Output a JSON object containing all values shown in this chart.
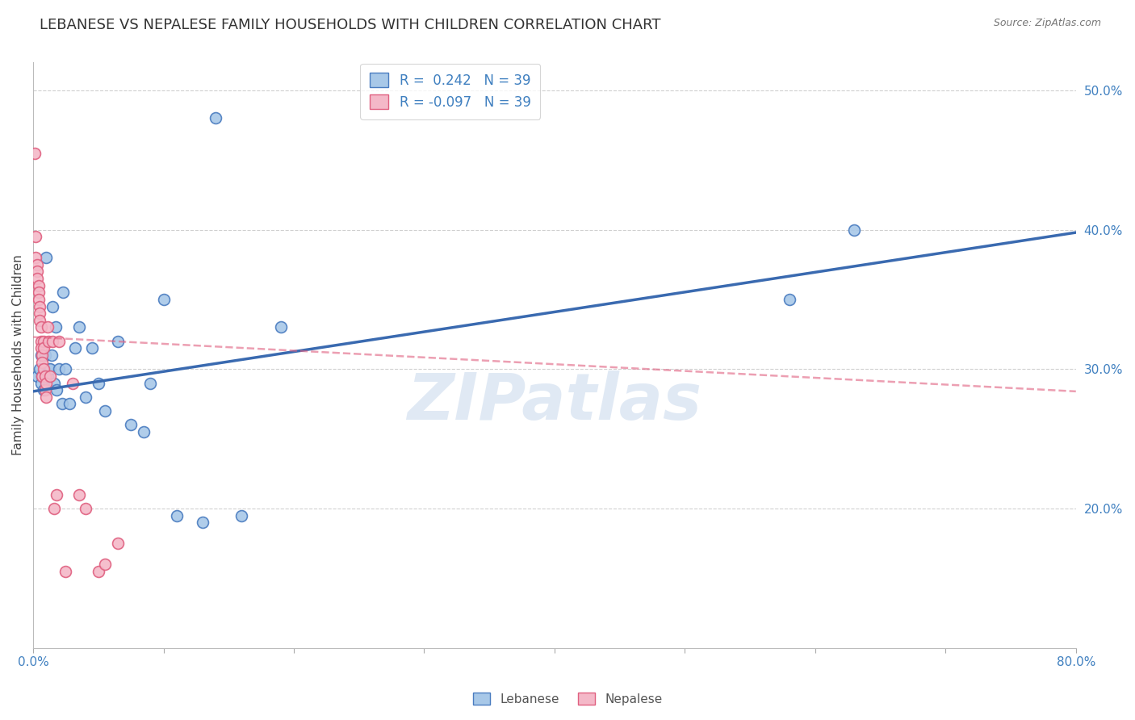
{
  "title": "LEBANESE VS NEPALESE FAMILY HOUSEHOLDS WITH CHILDREN CORRELATION CHART",
  "source": "Source: ZipAtlas.com",
  "ylabel_label": "Family Households with Children",
  "watermark": "ZIPatlas",
  "x_min": 0.0,
  "x_max": 0.8,
  "y_min": 0.1,
  "y_max": 0.52,
  "y_ticks": [
    0.2,
    0.3,
    0.4,
    0.5
  ],
  "y_tick_labels": [
    "20.0%",
    "30.0%",
    "40.0%",
    "50.0%"
  ],
  "x_ticks": [
    0.0,
    0.1,
    0.2,
    0.3,
    0.4,
    0.5,
    0.6,
    0.7,
    0.8
  ],
  "lebanese_R": 0.242,
  "lebanese_N": 39,
  "nepalese_R": -0.097,
  "nepalese_N": 39,
  "lebanese_color": "#a8c8e8",
  "lebanese_edge_color": "#4a7cc0",
  "lebanese_line_color": "#3a6ab0",
  "nepalese_color": "#f4b8c8",
  "nepalese_edge_color": "#e06080",
  "nepalese_line_color": "#e06080",
  "background_color": "#ffffff",
  "grid_color": "#d0d0d0",
  "title_fontsize": 13,
  "axis_label_fontsize": 11,
  "tick_fontsize": 11,
  "marker_size": 100,
  "leb_line_x0": 0.0,
  "leb_line_y0": 0.284,
  "leb_line_x1": 0.8,
  "leb_line_y1": 0.398,
  "nep_line_x0": 0.0,
  "nep_line_y0": 0.323,
  "nep_line_x1": 0.8,
  "nep_line_y1": 0.284,
  "lebanese_x": [
    0.003,
    0.005,
    0.006,
    0.006,
    0.007,
    0.008,
    0.009,
    0.01,
    0.011,
    0.012,
    0.013,
    0.014,
    0.015,
    0.016,
    0.017,
    0.018,
    0.02,
    0.022,
    0.023,
    0.025,
    0.028,
    0.032,
    0.035,
    0.04,
    0.045,
    0.05,
    0.055,
    0.065,
    0.075,
    0.085,
    0.09,
    0.1,
    0.11,
    0.13,
    0.14,
    0.16,
    0.19,
    0.58,
    0.63
  ],
  "lebanese_y": [
    0.295,
    0.3,
    0.29,
    0.31,
    0.295,
    0.285,
    0.31,
    0.38,
    0.295,
    0.3,
    0.3,
    0.31,
    0.345,
    0.29,
    0.33,
    0.285,
    0.3,
    0.275,
    0.355,
    0.3,
    0.275,
    0.315,
    0.33,
    0.28,
    0.315,
    0.29,
    0.27,
    0.32,
    0.26,
    0.255,
    0.29,
    0.35,
    0.195,
    0.19,
    0.48,
    0.195,
    0.33,
    0.35,
    0.4
  ],
  "nepalese_x": [
    0.001,
    0.002,
    0.002,
    0.003,
    0.003,
    0.003,
    0.004,
    0.004,
    0.004,
    0.005,
    0.005,
    0.005,
    0.006,
    0.006,
    0.006,
    0.007,
    0.007,
    0.007,
    0.008,
    0.008,
    0.008,
    0.009,
    0.009,
    0.01,
    0.01,
    0.011,
    0.012,
    0.013,
    0.015,
    0.016,
    0.018,
    0.02,
    0.025,
    0.03,
    0.035,
    0.04,
    0.05,
    0.055,
    0.065
  ],
  "nepalese_y": [
    0.455,
    0.395,
    0.38,
    0.375,
    0.37,
    0.365,
    0.36,
    0.355,
    0.35,
    0.345,
    0.34,
    0.335,
    0.33,
    0.32,
    0.315,
    0.31,
    0.305,
    0.295,
    0.32,
    0.315,
    0.3,
    0.295,
    0.285,
    0.29,
    0.28,
    0.33,
    0.32,
    0.295,
    0.32,
    0.2,
    0.21,
    0.32,
    0.155,
    0.29,
    0.21,
    0.2,
    0.155,
    0.16,
    0.175
  ]
}
